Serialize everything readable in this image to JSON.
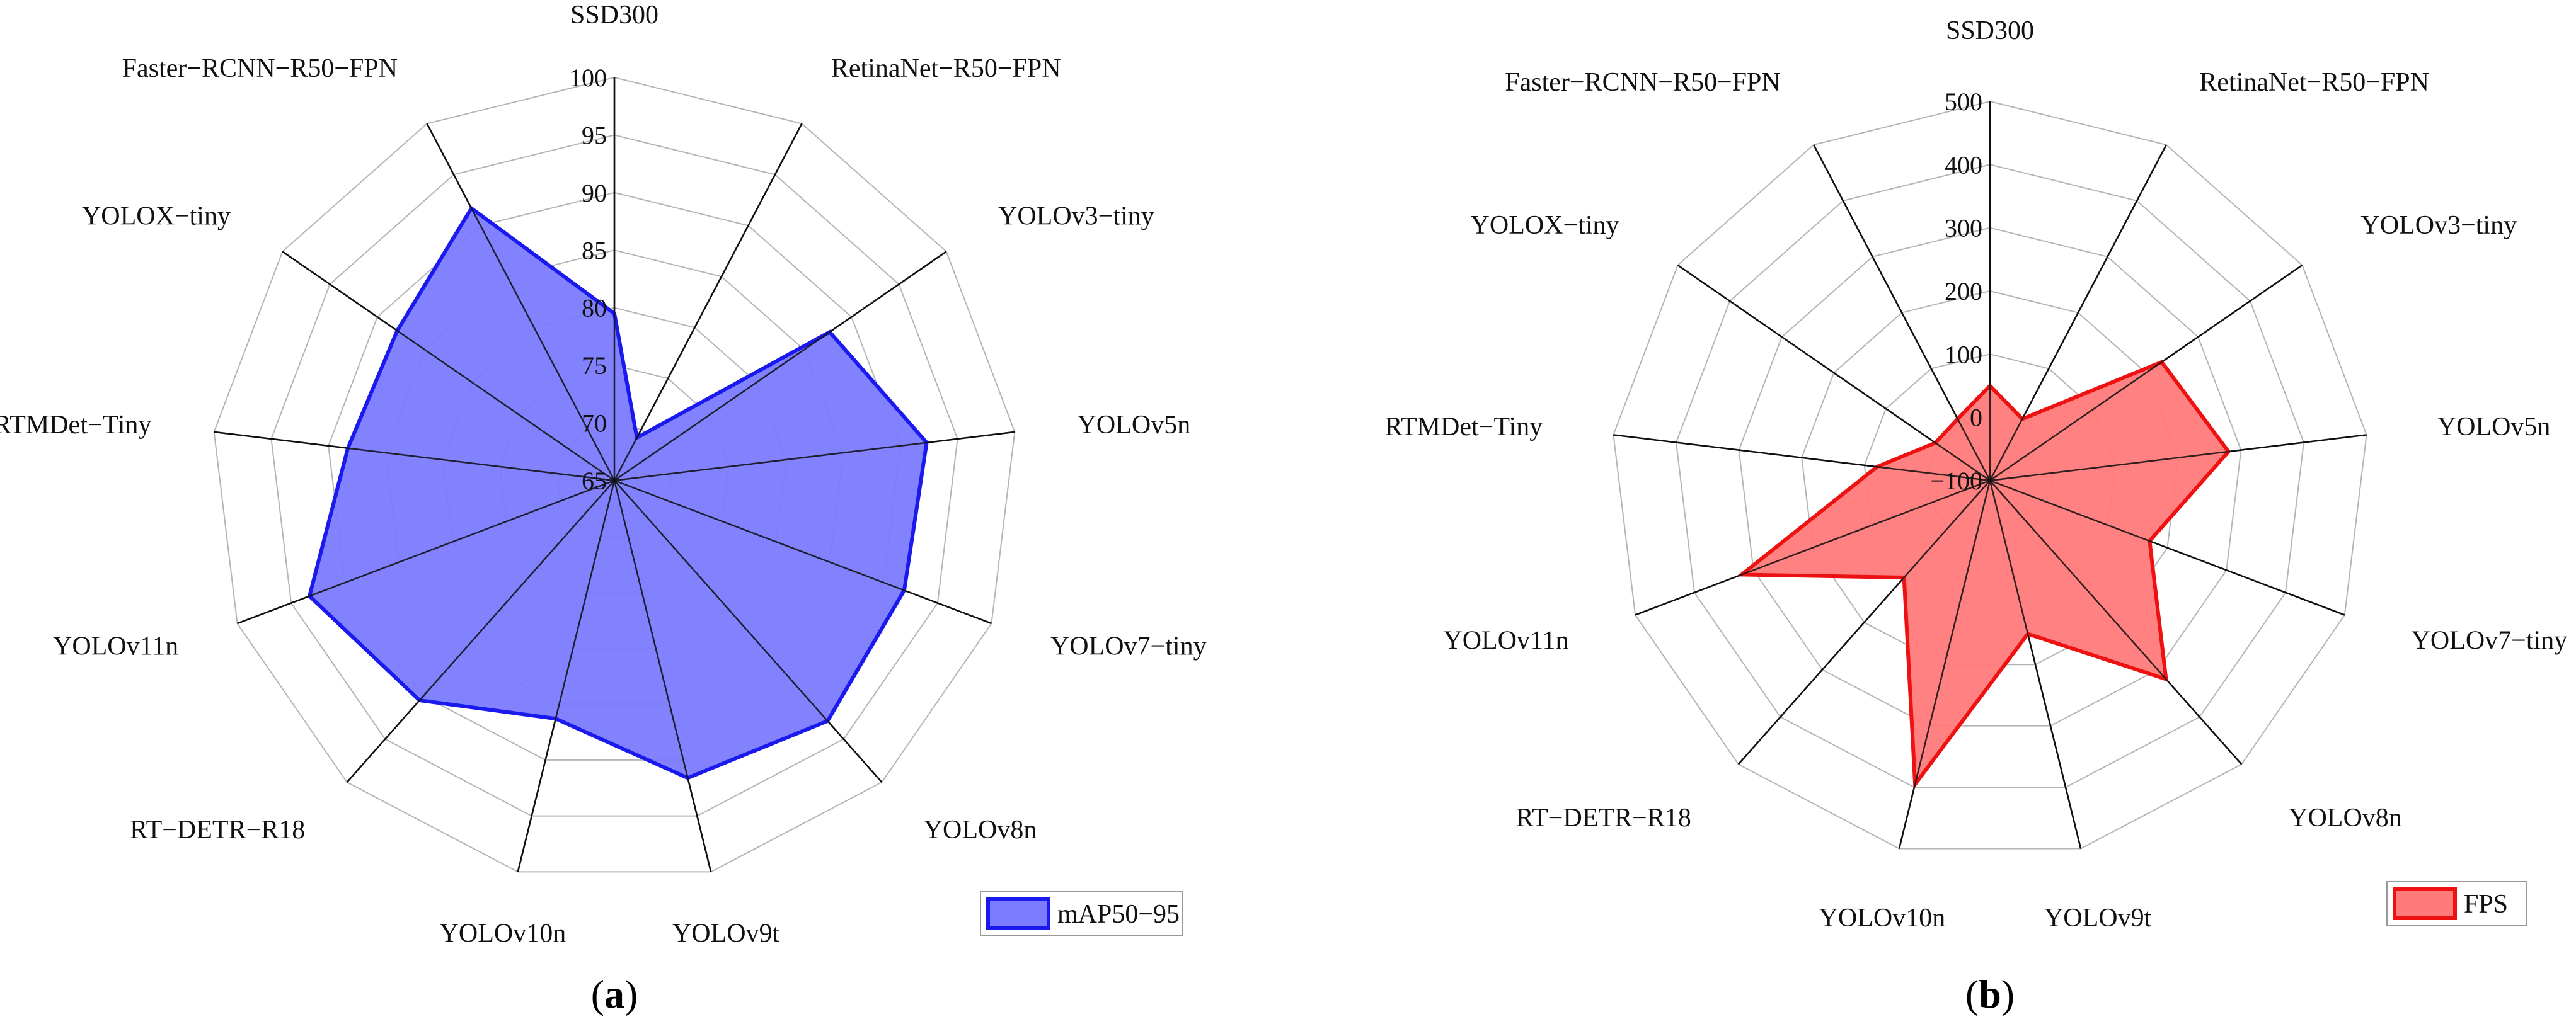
{
  "chart_data": [
    {
      "type": "radar",
      "panel_label": "a",
      "categories": [
        "SSD300",
        "RetinaNet−R50−FPN",
        "YOLOv3−tiny",
        "YOLOv5n",
        "YOLOv7−tiny",
        "YOLOv8n",
        "YOLOv9t",
        "YOLOv10n",
        "RT−DETR−R18",
        "YOLOv11n",
        "RTMDet−Tiny",
        "YOLOX−tiny",
        "Faster−RCNN−R50−FPN"
      ],
      "ticks": [
        "65",
        "70",
        "75",
        "80",
        "85",
        "90",
        "95",
        "100"
      ],
      "rlim": [
        65,
        100
      ],
      "series": [
        {
          "name": "mAP50−95",
          "values": [
            79.5,
            69.2,
            87.7,
            92.3,
            91.9,
            92.9,
            91.6,
            86.3,
            90.5,
            93.3,
            88.3,
            87.9,
            91.7
          ]
        }
      ],
      "colors": {
        "fill": "#7b7bff",
        "stroke": "#1a1aee"
      },
      "legend_position": "bottom-right",
      "grid": true
    },
    {
      "type": "radar",
      "panel_label": "b",
      "categories": [
        "SSD300",
        "RetinaNet−R50−FPN",
        "YOLOv3−tiny",
        "YOLOv5n",
        "YOLOv7−tiny",
        "YOLOv8n",
        "YOLOv9t",
        "YOLOv10n",
        "RT−DETR−R18",
        "YOLOv11n",
        "RTMDet−Tiny",
        "YOLOX−tiny",
        "Faster−RCNN−R50−FPN"
      ],
      "ticks": [
        "−100",
        "0",
        "100",
        "200",
        "300",
        "400",
        "500"
      ],
      "rlim": [
        -100,
        500
      ],
      "series": [
        {
          "name": "FPS",
          "values": [
            50,
            10,
            230,
            280,
            170,
            320,
            150,
            395,
            105,
            320,
            80,
            5,
            10
          ]
        }
      ],
      "colors": {
        "fill": "#ff7a7a",
        "stroke": "#ee1111"
      },
      "legend_position": "bottom-right",
      "grid": true
    }
  ]
}
